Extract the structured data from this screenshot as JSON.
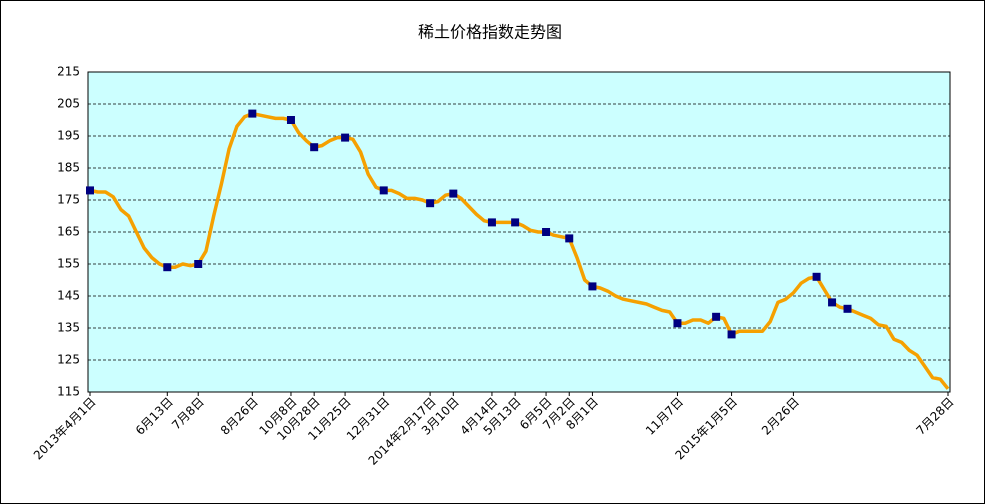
{
  "chart_data": {
    "type": "line",
    "title": "稀土价格指数走势图",
    "categories": [
      "2013年4月1日",
      null,
      null,
      null,
      null,
      null,
      null,
      null,
      null,
      null,
      "6月13日",
      null,
      null,
      null,
      "7月8日",
      null,
      null,
      null,
      null,
      null,
      null,
      "8月26日",
      null,
      null,
      null,
      null,
      "10月8日",
      null,
      null,
      "10月28日",
      null,
      null,
      null,
      "11月25日",
      null,
      null,
      null,
      null,
      "12月31日",
      null,
      null,
      null,
      null,
      null,
      "2014年2月17日",
      null,
      null,
      "3月10日",
      null,
      null,
      null,
      null,
      "4月14日",
      null,
      null,
      "5月13日",
      null,
      null,
      null,
      "6月5日",
      null,
      null,
      "7月2日",
      null,
      null,
      "8月1日",
      null,
      null,
      null,
      null,
      null,
      null,
      null,
      null,
      null,
      null,
      "11月7日",
      null,
      null,
      null,
      null,
      null,
      null,
      "2015年1月5日",
      null,
      null,
      null,
      null,
      null,
      null,
      null,
      "2月26日",
      null,
      null,
      null,
      null,
      null,
      null,
      null,
      null,
      null,
      null,
      null,
      null,
      null,
      null,
      null,
      null,
      null,
      null,
      null,
      "7月28日"
    ],
    "series": [
      {
        "color": "#f5a000",
        "values": [
          178,
          177.5,
          177.5,
          176,
          172,
          170,
          165,
          160,
          157,
          155,
          154,
          154,
          155,
          154.5,
          155,
          159,
          170,
          180,
          191,
          198,
          201,
          202,
          201.5,
          201,
          200.5,
          200.5,
          200,
          196,
          193.5,
          191.5,
          192,
          193.5,
          194.5,
          194.5,
          194,
          190,
          183,
          179,
          178,
          178,
          177,
          175.5,
          175.5,
          175,
          174,
          174.5,
          176.5,
          177,
          175.5,
          173,
          170.5,
          168.5,
          168,
          168,
          168,
          168,
          167,
          165.5,
          165,
          165,
          164,
          163.5,
          163,
          157,
          150,
          148,
          147.5,
          146.5,
          145,
          144,
          143.5,
          143,
          142.5,
          141.5,
          140.5,
          140,
          136.5,
          136.5,
          137.5,
          137.5,
          136.5,
          138.5,
          138,
          133,
          134,
          134,
          134,
          134,
          137,
          143,
          144,
          146,
          149,
          150.5,
          151,
          147,
          143,
          141.5,
          141,
          140,
          139,
          138,
          136,
          135.5,
          131.5,
          130.5,
          128,
          126.5,
          123,
          119.5,
          119,
          116
        ]
      },
      {
        "color": "#000080",
        "values": [
          178,
          null,
          null,
          null,
          null,
          null,
          null,
          null,
          null,
          null,
          154,
          null,
          null,
          null,
          155,
          null,
          null,
          null,
          null,
          null,
          null,
          202,
          null,
          null,
          null,
          null,
          200,
          null,
          null,
          191.5,
          null,
          null,
          null,
          194.5,
          null,
          null,
          null,
          null,
          178,
          null,
          null,
          null,
          null,
          null,
          174,
          null,
          null,
          177,
          null,
          null,
          null,
          null,
          168,
          null,
          null,
          168,
          null,
          null,
          null,
          165,
          null,
          null,
          163,
          null,
          null,
          148,
          null,
          null,
          null,
          null,
          null,
          null,
          null,
          null,
          null,
          null,
          136.5,
          null,
          null,
          null,
          null,
          138.5,
          null,
          133,
          null,
          null,
          null,
          null,
          null,
          null,
          null,
          null,
          null,
          null,
          151,
          null,
          143,
          null,
          141,
          null,
          null,
          null,
          null,
          null,
          null,
          null,
          null,
          null,
          null,
          null,
          null,
          null
        ]
      }
    ],
    "ylim": [
      115,
      215
    ],
    "yticks": [
      115,
      125,
      135,
      145,
      155,
      165,
      175,
      185,
      195,
      205,
      215
    ],
    "grid": true
  }
}
